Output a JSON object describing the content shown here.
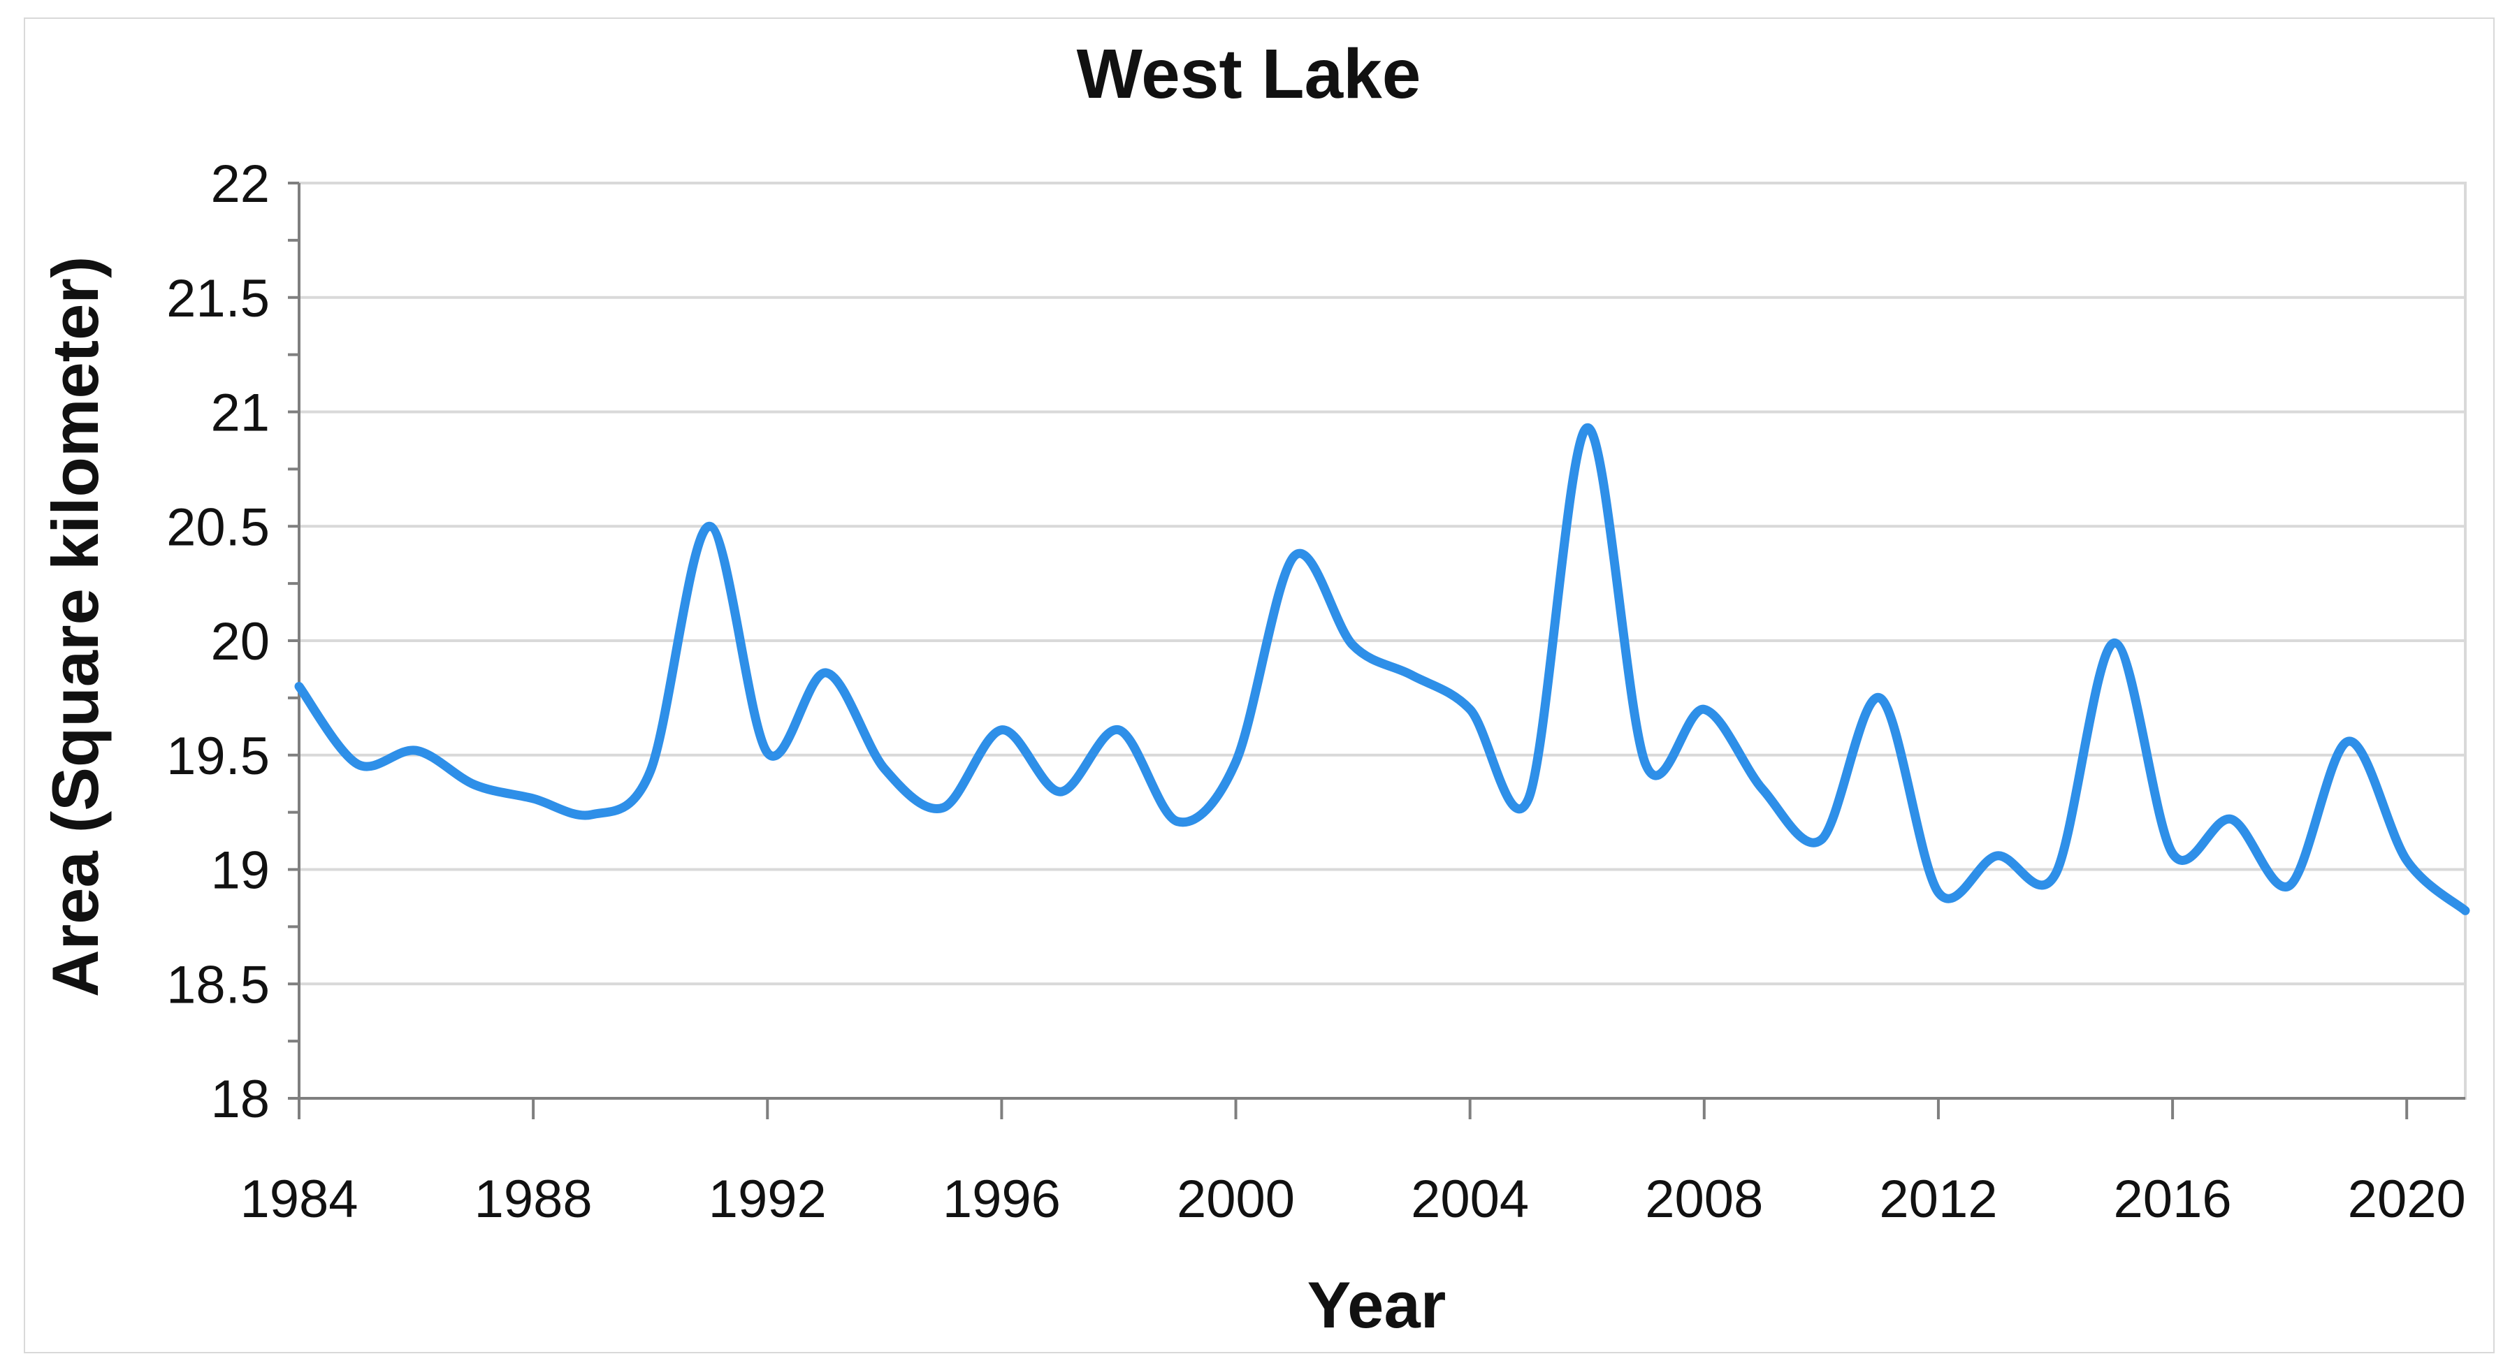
{
  "chart_data": {
    "type": "line",
    "title": "West Lake",
    "xlabel": "Year",
    "ylabel": "Area (Square kilometer)",
    "xlim": [
      1984,
      2021
    ],
    "ylim": [
      18,
      22
    ],
    "x_ticks": [
      1984,
      1988,
      1992,
      1996,
      2000,
      2004,
      2008,
      2012,
      2016,
      2020
    ],
    "x_tick_labels": [
      "1984",
      "1988",
      "1992",
      "1996",
      "2000",
      "2004",
      "2008",
      "2012",
      "2016",
      "2020"
    ],
    "y_ticks": [
      18,
      18.5,
      19,
      19.5,
      20,
      20.5,
      21,
      21.5,
      22
    ],
    "y_tick_labels": [
      "18",
      "18.5",
      "19",
      "19.5",
      "20",
      "20.5",
      "21",
      "21.5",
      "22"
    ],
    "grid": true,
    "legend": "none",
    "x": [
      1984,
      1985,
      1986,
      1987,
      1988,
      1989,
      1990,
      1991,
      1992,
      1993,
      1994,
      1995,
      1996,
      1997,
      1998,
      1999,
      2000,
      2001,
      2002,
      2003,
      2004,
      2005,
      2006,
      2007,
      2008,
      2009,
      2010,
      2011,
      2012,
      2013,
      2014,
      2015,
      2016,
      2017,
      2018,
      2019,
      2020,
      2021
    ],
    "series": [
      {
        "values": [
          19.8,
          19.46,
          19.52,
          19.37,
          19.31,
          19.24,
          19.43,
          20.5,
          19.51,
          19.86,
          19.44,
          19.27,
          19.61,
          19.34,
          19.61,
          19.21,
          19.47,
          20.37,
          19.98,
          19.85,
          19.7,
          19.31,
          20.93,
          19.46,
          19.7,
          19.35,
          19.13,
          19.75,
          18.9,
          19.06,
          18.98,
          19.99,
          19.07,
          19.22,
          18.93,
          19.56,
          19.04,
          18.82
        ],
        "color": "#2e8fe8"
      }
    ]
  }
}
